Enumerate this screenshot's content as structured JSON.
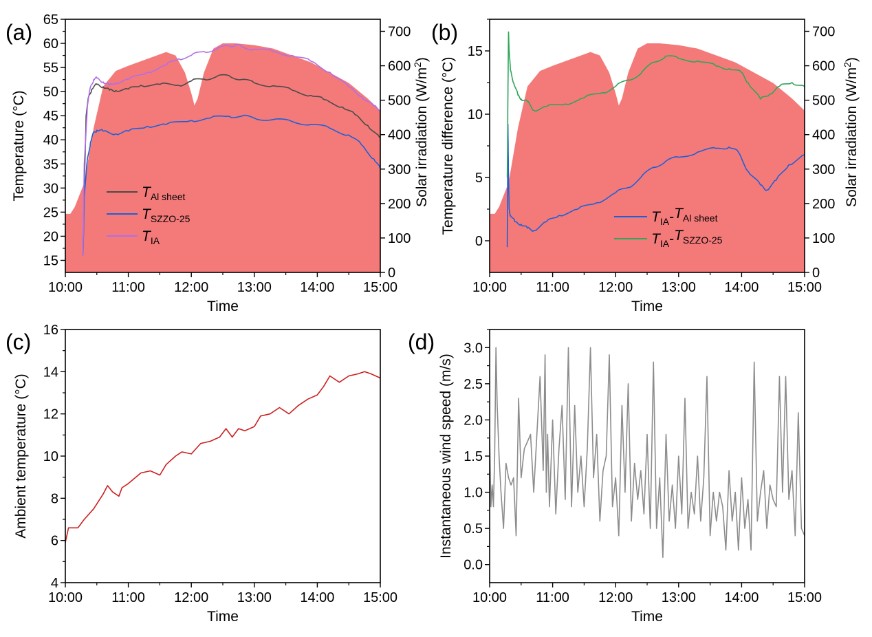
{
  "chart_data": [
    {
      "panel": "(a)",
      "type": "line",
      "xlabel": "Time",
      "ylabel": "Temperature (°C)",
      "y2label": "Solar irradiation (W/m²)",
      "x_ticks": [
        "10:00",
        "11:00",
        "12:00",
        "13:00",
        "14:00",
        "15:00"
      ],
      "xlim_hours": [
        10.0,
        15.0
      ],
      "ylim": [
        12.5,
        65
      ],
      "y_ticks": [
        15,
        20,
        25,
        30,
        35,
        40,
        45,
        50,
        55,
        60,
        65
      ],
      "y2lim": [
        0,
        735
      ],
      "y2_ticks": [
        0,
        100,
        200,
        300,
        400,
        500,
        600,
        700
      ],
      "irradiation": {
        "name": "Solar irradiation",
        "color": "#f47a7a",
        "x": [
          10.0,
          10.08,
          10.15,
          10.3,
          10.45,
          10.6,
          10.8,
          11.0,
          11.3,
          11.6,
          11.75,
          11.9,
          12.0,
          12.05,
          12.1,
          12.2,
          12.35,
          12.5,
          12.7,
          13.0,
          13.3,
          13.6,
          13.9,
          14.2,
          14.5,
          14.8,
          15.0
        ],
        "y": [
          170,
          170,
          190,
          260,
          420,
          540,
          585,
          600,
          620,
          640,
          630,
          580,
          520,
          485,
          505,
          580,
          650,
          665,
          665,
          660,
          650,
          630,
          610,
          580,
          550,
          505,
          470
        ]
      },
      "series": [
        {
          "name": "T_Al sheet",
          "label_main": "T",
          "label_sub": "Al sheet",
          "color": "#4a4a4a",
          "x": [
            10.28,
            10.3,
            10.33,
            10.37,
            10.42,
            10.5,
            10.6,
            10.7,
            10.8,
            11.0,
            11.2,
            11.5,
            11.8,
            12.0,
            12.2,
            12.4,
            12.6,
            12.8,
            13.0,
            13.3,
            13.6,
            13.9,
            14.1,
            14.4,
            14.6,
            14.8,
            15.0
          ],
          "y": [
            16,
            30,
            45,
            49,
            50.5,
            51.5,
            51,
            50.3,
            50.2,
            50.5,
            51.3,
            51.5,
            51.3,
            52.2,
            52.6,
            53.1,
            53.3,
            52.5,
            51.8,
            51.2,
            50.3,
            49.2,
            48.4,
            46.8,
            45.2,
            43.0,
            40.3
          ]
        },
        {
          "name": "T_SZZO-25",
          "label_main": "T",
          "label_sub": "SZZO-25",
          "color": "#1f5fd6",
          "x": [
            10.28,
            10.3,
            10.35,
            10.4,
            10.45,
            10.5,
            10.6,
            10.8,
            11.0,
            11.3,
            11.6,
            12.0,
            12.3,
            12.6,
            12.8,
            13.0,
            13.3,
            13.6,
            13.9,
            14.2,
            14.5,
            14.7,
            14.9,
            15.0
          ],
          "y": [
            16,
            28,
            36,
            39.5,
            41.5,
            42,
            41.8,
            41.2,
            41.8,
            42.8,
            43.2,
            44,
            44.5,
            44.9,
            44.9,
            44.5,
            44.2,
            43.8,
            43.2,
            42.4,
            41,
            39,
            36,
            34
          ]
        },
        {
          "name": "T_IA",
          "label_main": "T",
          "label_sub": "IA",
          "color": "#b06ee8",
          "x": [
            10.28,
            10.3,
            10.35,
            10.4,
            10.45,
            10.5,
            10.6,
            10.7,
            10.8,
            11.0,
            11.3,
            11.6,
            11.8,
            12.0,
            12.2,
            12.4,
            12.6,
            12.7,
            12.8,
            13.0,
            13.3,
            13.6,
            13.9,
            14.2,
            14.5,
            14.7,
            14.9,
            15.0
          ],
          "y": [
            16,
            35,
            47,
            51,
            52.5,
            52.8,
            52,
            51.3,
            51.8,
            52.5,
            54,
            55.5,
            56.8,
            57.5,
            58.3,
            58.8,
            59.5,
            59.7,
            59.3,
            58.8,
            58.3,
            57.5,
            56.3,
            54,
            51,
            49,
            47,
            46
          ]
        }
      ],
      "legend_position": "middle-left"
    },
    {
      "panel": "(b)",
      "type": "line",
      "xlabel": "Time",
      "ylabel": "Temperature difference (°C)",
      "y2label": "Solar irradiation (W/m²)",
      "x_ticks": [
        "10:00",
        "11:00",
        "12:00",
        "13:00",
        "14:00",
        "15:00"
      ],
      "xlim_hours": [
        10.0,
        15.0
      ],
      "ylim": [
        -2.5,
        17.5
      ],
      "y_ticks": [
        0,
        5,
        10,
        15
      ],
      "y2lim": [
        0,
        735
      ],
      "y2_ticks": [
        0,
        100,
        200,
        300,
        400,
        500,
        600,
        700
      ],
      "irradiation": {
        "name": "Solar irradiation",
        "color": "#f47a7a",
        "x": [
          10.0,
          10.08,
          10.15,
          10.3,
          10.45,
          10.6,
          10.8,
          11.0,
          11.3,
          11.6,
          11.75,
          11.9,
          12.0,
          12.05,
          12.1,
          12.2,
          12.35,
          12.5,
          12.7,
          13.0,
          13.3,
          13.6,
          13.9,
          14.2,
          14.5,
          14.8,
          15.0
        ],
        "y": [
          170,
          170,
          190,
          260,
          420,
          540,
          585,
          600,
          620,
          640,
          630,
          580,
          520,
          485,
          505,
          580,
          650,
          665,
          665,
          660,
          650,
          630,
          610,
          580,
          550,
          505,
          470
        ]
      },
      "series": [
        {
          "name": "T_IA-T_Al sheet",
          "label_parts": [
            [
              "T",
              ""
            ],
            [
              "IA",
              "sub"
            ],
            [
              "-",
              ""
            ],
            [
              "T",
              ""
            ],
            [
              "Al sheet",
              "sub"
            ]
          ],
          "color": "#1f5fd6",
          "x": [
            10.28,
            10.29,
            10.3,
            10.31,
            10.33,
            10.4,
            10.5,
            10.6,
            10.7,
            10.9,
            11.1,
            11.4,
            11.7,
            12.0,
            12.2,
            12.4,
            12.6,
            12.8,
            13.0,
            13.3,
            13.6,
            13.8,
            13.95,
            14.1,
            14.3,
            14.4,
            14.55,
            14.75,
            15.0
          ],
          "y": [
            -0.5,
            9.2,
            5.0,
            2.5,
            2.0,
            1.5,
            1.3,
            1.0,
            0.8,
            1.5,
            2.0,
            2.5,
            3.0,
            3.8,
            4.2,
            5.0,
            5.8,
            6.3,
            6.6,
            7.0,
            7.3,
            7.4,
            7.0,
            5.5,
            4.4,
            4.0,
            4.8,
            6.0,
            6.8
          ]
        },
        {
          "name": "T_IA-T_SZZO-25",
          "label_parts": [
            [
              "T",
              ""
            ],
            [
              "IA",
              "sub"
            ],
            [
              "-",
              ""
            ],
            [
              "T",
              ""
            ],
            [
              "SZZO-25",
              "sub"
            ]
          ],
          "color": "#2ea55a",
          "x": [
            10.28,
            10.29,
            10.3,
            10.31,
            10.33,
            10.38,
            10.45,
            10.5,
            10.6,
            10.7,
            10.9,
            11.2,
            11.5,
            11.8,
            12.0,
            12.2,
            12.4,
            12.6,
            12.8,
            13.0,
            13.3,
            13.6,
            13.8,
            14.0,
            14.1,
            14.3,
            14.45,
            14.6,
            14.8,
            15.0
          ],
          "y": [
            5.0,
            11.5,
            16.5,
            15.0,
            13.5,
            12.5,
            11.5,
            11.2,
            11.0,
            10.3,
            10.6,
            10.8,
            11.3,
            11.7,
            12.2,
            12.7,
            13.2,
            14.1,
            14.6,
            14.4,
            14.2,
            13.8,
            13.6,
            13.3,
            12.5,
            11.2,
            11.6,
            12.2,
            12.5,
            12.2
          ]
        }
      ],
      "legend_position": "bottom-center"
    },
    {
      "panel": "(c)",
      "type": "line",
      "xlabel": "Time",
      "ylabel": "Ambient temperature (°C)",
      "x_ticks": [
        "10:00",
        "11:00",
        "12:00",
        "13:00",
        "14:00",
        "15:00"
      ],
      "xlim_hours": [
        10.0,
        15.0
      ],
      "ylim": [
        4,
        16
      ],
      "y_ticks": [
        4,
        6,
        8,
        10,
        12,
        14,
        16
      ],
      "series": [
        {
          "name": "Ambient temperature",
          "color": "#cc1f1f",
          "x": [
            10.0,
            10.05,
            10.2,
            10.3,
            10.45,
            10.6,
            10.67,
            10.75,
            10.85,
            10.9,
            11.0,
            11.2,
            11.35,
            11.5,
            11.6,
            11.75,
            11.85,
            12.0,
            12.15,
            12.3,
            12.45,
            12.55,
            12.65,
            12.75,
            12.85,
            13.0,
            13.1,
            13.25,
            13.4,
            13.55,
            13.7,
            13.85,
            14.0,
            14.1,
            14.2,
            14.35,
            14.5,
            14.65,
            14.75,
            14.85,
            15.0
          ],
          "y": [
            5.9,
            6.6,
            6.6,
            7.0,
            7.5,
            8.2,
            8.6,
            8.3,
            8.1,
            8.5,
            8.7,
            9.2,
            9.3,
            9.1,
            9.6,
            10.0,
            10.2,
            10.1,
            10.6,
            10.7,
            10.9,
            11.3,
            10.9,
            11.3,
            11.2,
            11.4,
            11.9,
            12.0,
            12.3,
            12.0,
            12.4,
            12.7,
            12.9,
            13.3,
            13.8,
            13.5,
            13.8,
            13.9,
            14.0,
            13.9,
            13.7
          ]
        }
      ]
    },
    {
      "panel": "(d)",
      "type": "line",
      "xlabel": "Time",
      "ylabel": "Instantaneous wind speed (m/s)",
      "x_ticks": [
        "10:00",
        "11:00",
        "12:00",
        "13:00",
        "14:00",
        "15:00"
      ],
      "xlim_hours": [
        10.0,
        15.0
      ],
      "ylim": [
        -0.25,
        3.25
      ],
      "y_ticks": [
        0.0,
        0.5,
        1.0,
        1.5,
        2.0,
        2.5,
        3.0
      ],
      "series": [
        {
          "name": "Instantaneous wind speed",
          "color": "#8c8c8c",
          "x": [
            10.0,
            10.02,
            10.04,
            10.06,
            10.08,
            10.1,
            10.12,
            10.15,
            10.18,
            10.22,
            10.26,
            10.3,
            10.34,
            10.38,
            10.42,
            10.46,
            10.5,
            10.55,
            10.6,
            10.65,
            10.7,
            10.8,
            10.85,
            10.88,
            10.9,
            10.92,
            10.95,
            11.0,
            11.05,
            11.1,
            11.15,
            11.2,
            11.25,
            11.3,
            11.35,
            11.4,
            11.45,
            11.5,
            11.55,
            11.6,
            11.65,
            11.7,
            11.75,
            11.8,
            11.85,
            11.9,
            11.95,
            12.0,
            12.05,
            12.1,
            12.15,
            12.2,
            12.25,
            12.3,
            12.35,
            12.4,
            12.45,
            12.5,
            12.55,
            12.6,
            12.65,
            12.7,
            12.75,
            12.8,
            12.85,
            12.9,
            12.95,
            13.0,
            13.05,
            13.1,
            13.15,
            13.2,
            13.25,
            13.3,
            13.35,
            13.4,
            13.45,
            13.5,
            13.55,
            13.6,
            13.65,
            13.7,
            13.75,
            13.8,
            13.85,
            13.9,
            13.95,
            14.0,
            14.05,
            14.1,
            14.15,
            14.2,
            14.25,
            14.3,
            14.35,
            14.4,
            14.45,
            14.5,
            14.55,
            14.6,
            14.65,
            14.7,
            14.75,
            14.8,
            14.85,
            14.9,
            14.95,
            15.0
          ],
          "y": [
            1.8,
            0.8,
            1.1,
            0.8,
            1.5,
            3.0,
            2.2,
            1.5,
            1.0,
            0.5,
            1.4,
            1.2,
            1.1,
            1.2,
            0.4,
            2.3,
            1.2,
            1.6,
            1.7,
            1.8,
            1.0,
            2.6,
            1.3,
            2.9,
            1.0,
            1.8,
            0.8,
            2.0,
            0.7,
            1.6,
            2.2,
            0.9,
            3.0,
            0.8,
            2.2,
            1.0,
            1.5,
            0.8,
            1.6,
            3.0,
            1.2,
            1.8,
            0.6,
            1.3,
            1.5,
            2.9,
            0.8,
            1.2,
            0.4,
            2.2,
            1.0,
            2.5,
            0.6,
            1.4,
            0.9,
            1.3,
            0.7,
            1.8,
            0.5,
            2.8,
            0.5,
            1.2,
            0.1,
            1.8,
            0.6,
            1.1,
            0.5,
            1.5,
            0.7,
            2.3,
            0.5,
            1.0,
            0.7,
            1.5,
            0.6,
            1.2,
            2.6,
            0.4,
            1.0,
            0.6,
            1.0,
            0.8,
            0.2,
            1.3,
            0.6,
            1.0,
            0.2,
            1.2,
            0.5,
            0.9,
            0.2,
            2.8,
            0.6,
            1.0,
            1.3,
            0.5,
            1.1,
            0.9,
            0.8,
            2.6,
            1.0,
            2.6,
            0.9,
            1.3,
            0.4,
            2.1,
            0.5,
            0.4
          ]
        }
      ]
    }
  ]
}
